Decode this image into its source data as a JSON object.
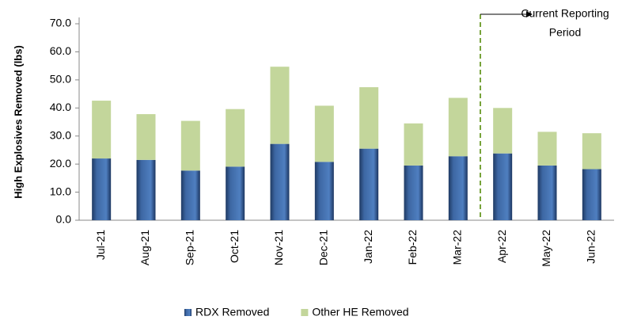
{
  "chart_data": {
    "type": "stacked_bar",
    "y_label": "High Explosives Removed (lbs)",
    "annotation": [
      "Current Reporting",
      "Period"
    ],
    "categories": [
      "Jul-21",
      "Aug-21",
      "Sep-21",
      "Oct-21",
      "Nov-21",
      "Dec-21",
      "Jan-22",
      "Feb-22",
      "Mar-22",
      "Apr-22",
      "May-22",
      "Jun-22"
    ],
    "series": [
      {
        "name": "RDX Removed",
        "color": "#2f5486",
        "values": [
          22.0,
          21.5,
          17.7,
          19.1,
          27.2,
          20.8,
          25.5,
          19.5,
          22.8,
          23.8,
          19.5,
          18.2
        ]
      },
      {
        "name": "Other HE Removed",
        "color": "#c3d69b",
        "values": [
          20.6,
          16.3,
          17.7,
          20.5,
          27.5,
          20.0,
          21.9,
          15.0,
          20.8,
          16.2,
          12.0,
          12.8
        ]
      }
    ],
    "ylim": [
      0,
      70
    ],
    "yticks": [
      {
        "value": 0,
        "label": "0.0"
      },
      {
        "value": 10,
        "label": "10.0"
      },
      {
        "value": 20,
        "label": "20.0"
      },
      {
        "value": 30,
        "label": "30.0"
      },
      {
        "value": 40,
        "label": "40.0"
      },
      {
        "value": 50,
        "label": "50.0"
      },
      {
        "value": 60,
        "label": "60.0"
      },
      {
        "value": 70,
        "label": "70.0"
      }
    ],
    "grid": false,
    "legend": "bottom"
  }
}
